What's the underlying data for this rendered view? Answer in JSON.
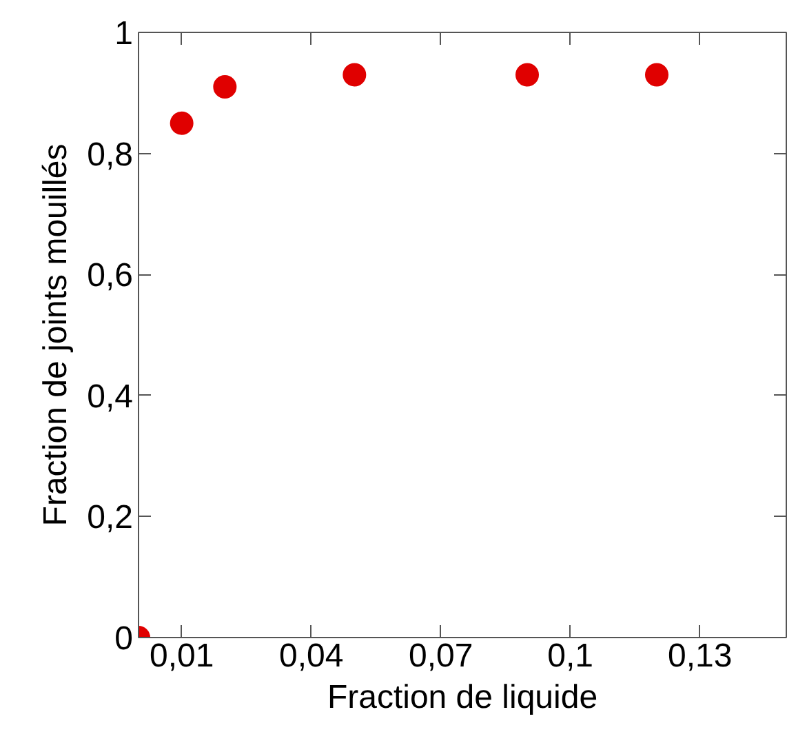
{
  "chart_data": {
    "type": "scatter",
    "xlabel": "Fraction de liquide",
    "ylabel": "Fraction de joints mouillés",
    "x": [
      0,
      0.01,
      0.02,
      0.05,
      0.09,
      0.12
    ],
    "series": [
      {
        "color": "#e00000",
        "values": [
          0,
          0.85,
          0.91,
          0.93,
          0.93,
          0.93
        ]
      }
    ],
    "xlim": [
      0,
      0.15
    ],
    "xticks": [
      {
        "value": 0.01,
        "label": "0,01"
      },
      {
        "value": 0.04,
        "label": "0,04"
      },
      {
        "value": 0.07,
        "label": "0,07"
      },
      {
        "value": 0.1,
        "label": "0,1"
      },
      {
        "value": 0.13,
        "label": "0,13"
      }
    ],
    "ylim": [
      0,
      1
    ],
    "yticks": [
      0,
      {
        "value": 0.2,
        "label": "0,2"
      },
      {
        "value": 0.4,
        "label": "0,4"
      },
      {
        "value": 0.6,
        "label": "0,6"
      },
      {
        "value": 0.8,
        "label": "0,8"
      },
      1
    ],
    "grid": false,
    "marker": "circle"
  }
}
